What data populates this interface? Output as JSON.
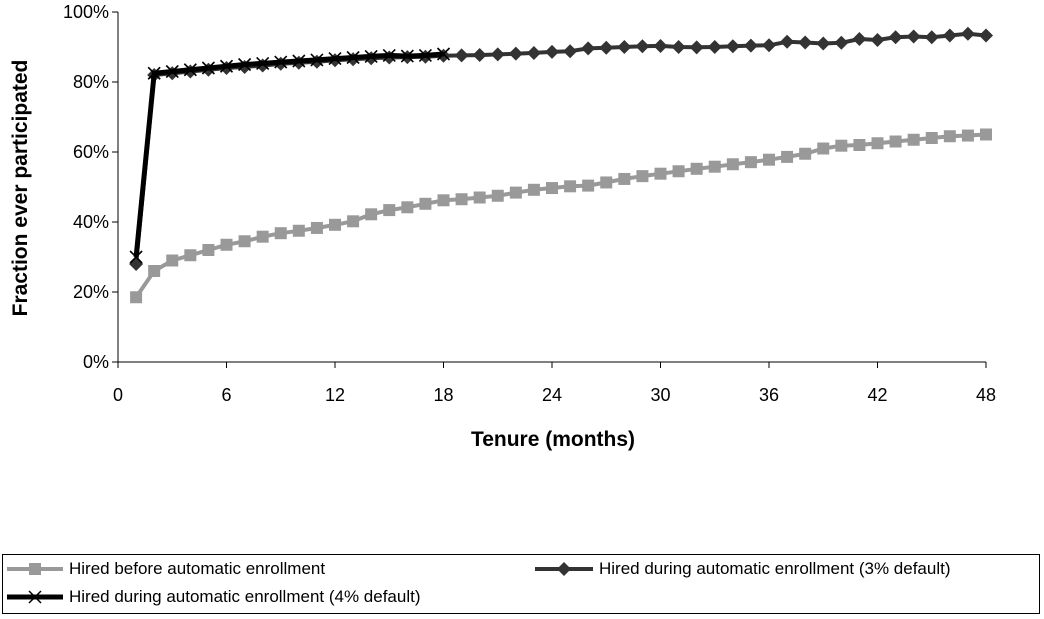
{
  "chart_data": {
    "type": "line",
    "title": "",
    "xlabel": "Tenure (months)",
    "ylabel": "Fraction ever participated",
    "xlim": [
      0,
      48
    ],
    "ylim": [
      0,
      100
    ],
    "x_ticks": [
      "0",
      "6",
      "12",
      "18",
      "24",
      "30",
      "36",
      "42",
      "48"
    ],
    "y_ticks": [
      "0%",
      "20%",
      "40%",
      "60%",
      "80%",
      "100%"
    ],
    "grid": false,
    "legend_position": "bottom",
    "series": [
      {
        "name": "Hired before automatic enrollment",
        "color": "#999999",
        "marker": "square",
        "line_width": 4,
        "x": [
          1,
          2,
          3,
          4,
          5,
          6,
          7,
          8,
          9,
          10,
          11,
          12,
          13,
          14,
          15,
          16,
          17,
          18,
          19,
          20,
          21,
          22,
          23,
          24,
          25,
          26,
          27,
          28,
          29,
          30,
          31,
          32,
          33,
          34,
          35,
          36,
          37,
          38,
          39,
          40,
          41,
          42,
          43,
          44,
          45,
          46,
          47,
          48
        ],
        "values": [
          18.5,
          26,
          29,
          30.5,
          32,
          33.5,
          34.5,
          35.8,
          36.8,
          37.5,
          38.3,
          39.2,
          40.2,
          42.2,
          43.4,
          44.2,
          45.2,
          46.2,
          46.5,
          47,
          47.5,
          48.4,
          49.2,
          49.7,
          50.2,
          50.4,
          51.3,
          52.3,
          53.1,
          53.8,
          54.5,
          55.2,
          55.8,
          56.5,
          57.1,
          57.8,
          58.6,
          59.5,
          61,
          61.8,
          62,
          62.5,
          63,
          63.5,
          64,
          64.5,
          64.7,
          65
        ]
      },
      {
        "name": "Hired during automatic enrollment (3% default)",
        "color": "#333333",
        "marker": "diamond",
        "line_width": 4,
        "x": [
          1,
          2,
          3,
          4,
          5,
          6,
          7,
          8,
          9,
          10,
          11,
          12,
          13,
          14,
          15,
          16,
          17,
          18,
          19,
          20,
          21,
          22,
          23,
          24,
          25,
          26,
          27,
          28,
          29,
          30,
          31,
          32,
          33,
          34,
          35,
          36,
          37,
          38,
          39,
          40,
          41,
          42,
          43,
          44,
          45,
          46,
          47,
          48
        ],
        "values": [
          28,
          82,
          82.5,
          83,
          83.5,
          84,
          84.3,
          84.7,
          85.2,
          85.5,
          85.8,
          86.2,
          86.5,
          86.8,
          87,
          87.1,
          87.2,
          87.5,
          87.6,
          87.7,
          87.9,
          88.1,
          88.3,
          88.6,
          88.8,
          89.6,
          89.8,
          90,
          90.2,
          90.3,
          90,
          89.9,
          90,
          90.2,
          90.4,
          90.5,
          91.5,
          91.3,
          91,
          91.2,
          92.3,
          92,
          92.8,
          93,
          92.8,
          93.3,
          93.8,
          93.3
        ]
      },
      {
        "name": "Hired during automatic enrollment (4% default)",
        "color": "#000000",
        "marker": "x",
        "line_width": 5,
        "x": [
          1,
          2,
          3,
          4,
          5,
          6,
          7,
          8,
          9,
          10,
          11,
          12,
          13,
          14,
          15,
          16,
          17,
          18
        ],
        "values": [
          30,
          82.5,
          83,
          83.5,
          84,
          84.5,
          85,
          85.3,
          85.7,
          86,
          86.3,
          86.7,
          87,
          87.3,
          87.6,
          87.4,
          87.6,
          88
        ]
      }
    ]
  }
}
